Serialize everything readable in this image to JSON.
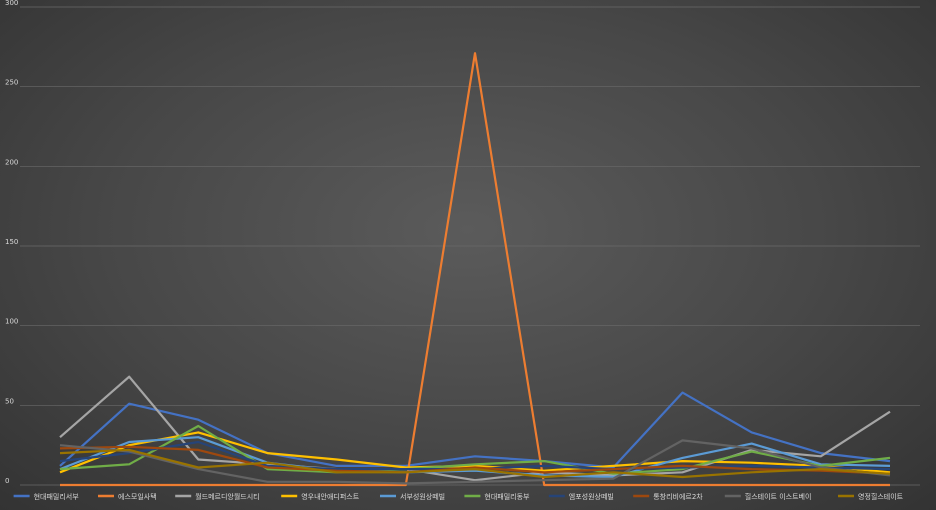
{
  "chart_data": {
    "type": "line",
    "ylim": [
      0,
      300
    ],
    "yticks": [
      0,
      50,
      100,
      150,
      200,
      250,
      300
    ],
    "grid": true,
    "legend_position": "bottom",
    "x": [
      1,
      2,
      3,
      4,
      5,
      6,
      7,
      8,
      9,
      10,
      11,
      12,
      13
    ],
    "series": [
      {
        "name": "현대패밀리서부",
        "color": "#4472c4",
        "values": [
          12,
          51,
          41,
          20,
          12,
          12,
          18,
          15,
          11,
          58,
          33,
          20,
          15
        ]
      },
      {
        "name": "에스모일사택",
        "color": "#ed7d31",
        "values": [
          0,
          0,
          0,
          0,
          0,
          0,
          271,
          0,
          0,
          0,
          0,
          0,
          0
        ]
      },
      {
        "name": "월드메르디앙월드시티",
        "color": "#a5a5a5",
        "values": [
          30,
          68,
          16,
          13,
          10,
          10,
          3,
          8,
          6,
          8,
          22,
          18,
          46
        ]
      },
      {
        "name": "영우내안애디퍼스트",
        "color": "#ffc000",
        "values": [
          8,
          25,
          33,
          20,
          16,
          11,
          12,
          9,
          12,
          15,
          14,
          12,
          8
        ]
      },
      {
        "name": "서부성원상떼빌",
        "color": "#5b9bd5",
        "values": [
          10,
          27,
          30,
          14,
          9,
          8,
          9,
          6,
          5,
          17,
          26,
          13,
          12
        ]
      },
      {
        "name": "현대패밀리동부",
        "color": "#70ad47",
        "values": [
          10,
          13,
          37,
          10,
          8,
          10,
          13,
          15,
          7,
          10,
          21,
          12,
          17
        ]
      },
      {
        "name": "엠포성원상떼빌",
        "color": "#264478",
        "values": [
          15,
          20,
          27,
          12,
          10,
          10,
          10,
          12,
          10,
          11,
          12,
          11,
          10
        ]
      },
      {
        "name": "통창리비에르2차",
        "color": "#9e480e",
        "values": [
          23,
          24,
          22,
          11,
          9,
          8,
          11,
          8,
          10,
          12,
          10,
          9,
          7
        ]
      },
      {
        "name": "힐스테이트 이스트베이",
        "color": "#636363",
        "values": [
          25,
          21,
          10,
          2,
          2,
          1,
          2,
          3,
          4,
          28,
          23,
          11,
          6
        ]
      },
      {
        "name": "영정힐스테이트",
        "color": "#997300",
        "values": [
          20,
          22,
          11,
          14,
          8,
          8,
          10,
          5,
          8,
          5,
          8,
          10,
          7
        ]
      }
    ]
  }
}
